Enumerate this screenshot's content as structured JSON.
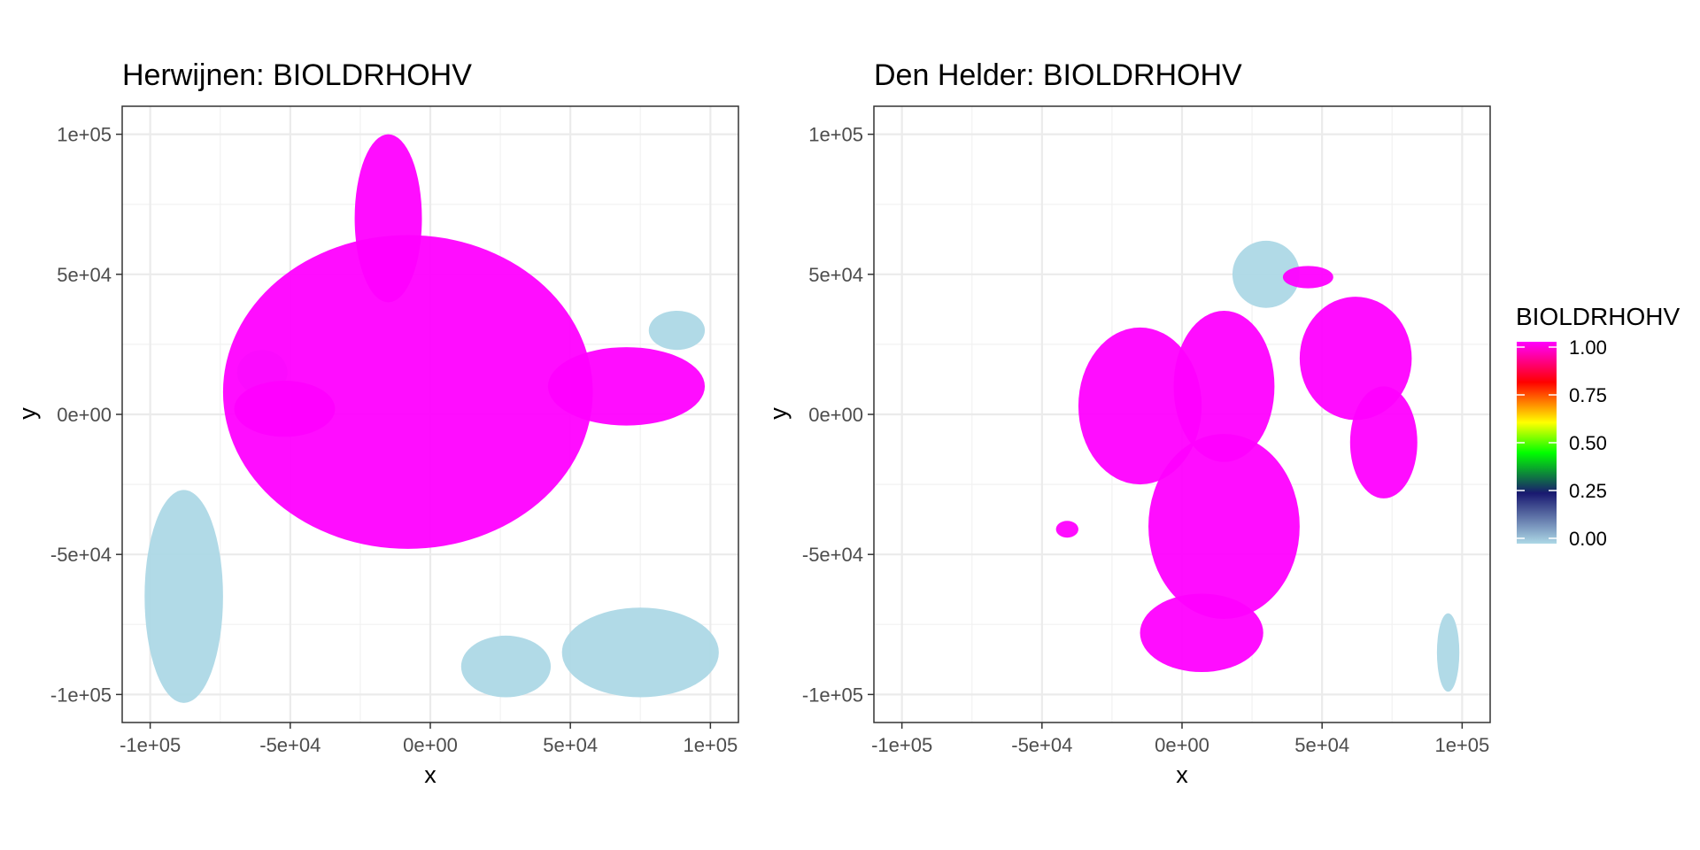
{
  "chart_data": [
    {
      "type": "heatmap",
      "title": "Herwijnen: BIOLDRHOHV",
      "xlabel": "x",
      "ylabel": "y",
      "xlim": [
        -110000,
        110000
      ],
      "ylim": [
        -110000,
        110000
      ],
      "xticks": [
        -100000,
        -50000,
        0,
        50000,
        100000
      ],
      "yticks": [
        -100000,
        -50000,
        0,
        50000,
        100000
      ],
      "xtick_labels": [
        "-1e+05",
        "-5e+04",
        "0e+00",
        "5e+04",
        "1e+05"
      ],
      "ytick_labels": [
        "-1e+05",
        "-5e+04",
        "0e+00",
        "5e+04",
        "1e+05"
      ],
      "grid": true,
      "regions": [
        {
          "value": 1.0,
          "shape": "ellipse",
          "cx": -8000,
          "cy": 8000,
          "rx": 66000,
          "ry": 56000
        },
        {
          "value": 1.0,
          "shape": "ellipse",
          "cx": -15000,
          "cy": 70000,
          "rx": 12000,
          "ry": 30000
        },
        {
          "value": 1.0,
          "shape": "ellipse",
          "cx": 70000,
          "cy": 10000,
          "rx": 28000,
          "ry": 14000
        },
        {
          "value": 1.0,
          "shape": "ellipse",
          "cx": -52000,
          "cy": 2000,
          "rx": 18000,
          "ry": 10000
        },
        {
          "value": 0.0,
          "shape": "ellipse",
          "cx": -88000,
          "cy": -65000,
          "rx": 14000,
          "ry": 38000
        },
        {
          "value": 0.0,
          "shape": "ellipse",
          "cx": 75000,
          "cy": -85000,
          "rx": 28000,
          "ry": 16000
        },
        {
          "value": 0.0,
          "shape": "ellipse",
          "cx": 27000,
          "cy": -90000,
          "rx": 16000,
          "ry": 11000
        },
        {
          "value": 0.0,
          "shape": "ellipse",
          "cx": 88000,
          "cy": 30000,
          "rx": 10000,
          "ry": 7000
        },
        {
          "value": 0.0,
          "shape": "ellipse",
          "cx": -60000,
          "cy": 15000,
          "rx": 9000,
          "ry": 8000
        }
      ]
    },
    {
      "type": "heatmap",
      "title": "Den Helder: BIOLDRHOHV",
      "xlabel": "x",
      "ylabel": "y",
      "xlim": [
        -110000,
        110000
      ],
      "ylim": [
        -110000,
        110000
      ],
      "xticks": [
        -100000,
        -50000,
        0,
        50000,
        100000
      ],
      "yticks": [
        -100000,
        -50000,
        0,
        50000,
        100000
      ],
      "xtick_labels": [
        "-1e+05",
        "-5e+04",
        "0e+00",
        "5e+04",
        "1e+05"
      ],
      "ytick_labels": [
        "-1e+05",
        "-5e+04",
        "0e+00",
        "5e+04",
        "1e+05"
      ],
      "grid": true,
      "regions": [
        {
          "value": 1.0,
          "shape": "ellipse",
          "cx": -15000,
          "cy": 3000,
          "rx": 22000,
          "ry": 28000
        },
        {
          "value": 1.0,
          "shape": "ellipse",
          "cx": 15000,
          "cy": 10000,
          "rx": 18000,
          "ry": 27000
        },
        {
          "value": 1.0,
          "shape": "ellipse",
          "cx": 15000,
          "cy": -40000,
          "rx": 27000,
          "ry": 33000
        },
        {
          "value": 1.0,
          "shape": "ellipse",
          "cx": 7000,
          "cy": -78000,
          "rx": 22000,
          "ry": 14000
        },
        {
          "value": 1.0,
          "shape": "ellipse",
          "cx": 62000,
          "cy": 20000,
          "rx": 20000,
          "ry": 22000
        },
        {
          "value": 1.0,
          "shape": "ellipse",
          "cx": 72000,
          "cy": -10000,
          "rx": 12000,
          "ry": 20000
        },
        {
          "value": 1.0,
          "shape": "ellipse",
          "cx": 45000,
          "cy": 49000,
          "rx": 9000,
          "ry": 4000
        },
        {
          "value": 1.0,
          "shape": "ellipse",
          "cx": -41000,
          "cy": -41000,
          "rx": 4000,
          "ry": 3000
        },
        {
          "value": 0.0,
          "shape": "ellipse",
          "cx": 95000,
          "cy": -85000,
          "rx": 4000,
          "ry": 14000
        },
        {
          "value": 0.0,
          "shape": "ellipse",
          "cx": 30000,
          "cy": 50000,
          "rx": 12000,
          "ry": 12000
        }
      ]
    }
  ],
  "legend": {
    "title": "BIOLDRHOHV",
    "placement": "right",
    "breaks": [
      1.0,
      0.75,
      0.5,
      0.25,
      0.0
    ],
    "labels": [
      "1.00",
      "0.75",
      "0.50",
      "0.25",
      "0.00"
    ],
    "colors": [
      "#add8e6",
      "#191970",
      "#00ff00",
      "#ffff00",
      "#ff0000",
      "#ff00ff"
    ],
    "color_positions": [
      0.0,
      0.25,
      0.45,
      0.6,
      0.8,
      1.0
    ]
  }
}
